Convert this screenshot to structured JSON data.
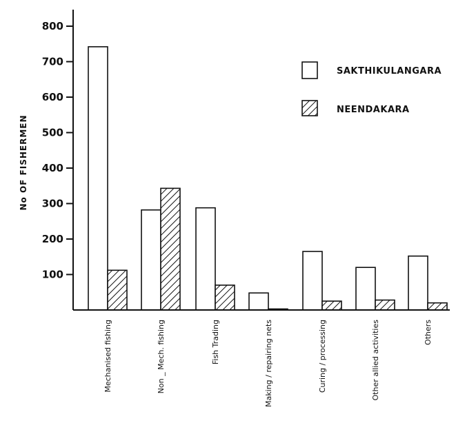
{
  "chart_data": {
    "type": "bar",
    "ylabel": "No OF FISHERMEN",
    "xlabel": "",
    "ylim": [
      0,
      800
    ],
    "yticks": [
      100,
      200,
      300,
      400,
      500,
      600,
      700,
      800
    ],
    "categories": [
      "Mechanised fishing",
      "Non _ Mech. fishing",
      "Fish Trading",
      "Making / repairing nets",
      "Curing / processing",
      "Other allied activities",
      "Others"
    ],
    "series": [
      {
        "name": "SAKTHIKULANGARA",
        "fill": "#ffffff",
        "pattern": "none",
        "values": [
          742,
          282,
          288,
          48,
          165,
          120,
          152
        ]
      },
      {
        "name": "NEENDAKARA",
        "fill": "#ffffff",
        "pattern": "hatched",
        "values": [
          112,
          343,
          70,
          2,
          25,
          28,
          20
        ]
      }
    ],
    "legend_position": "top-right",
    "grid": false
  }
}
